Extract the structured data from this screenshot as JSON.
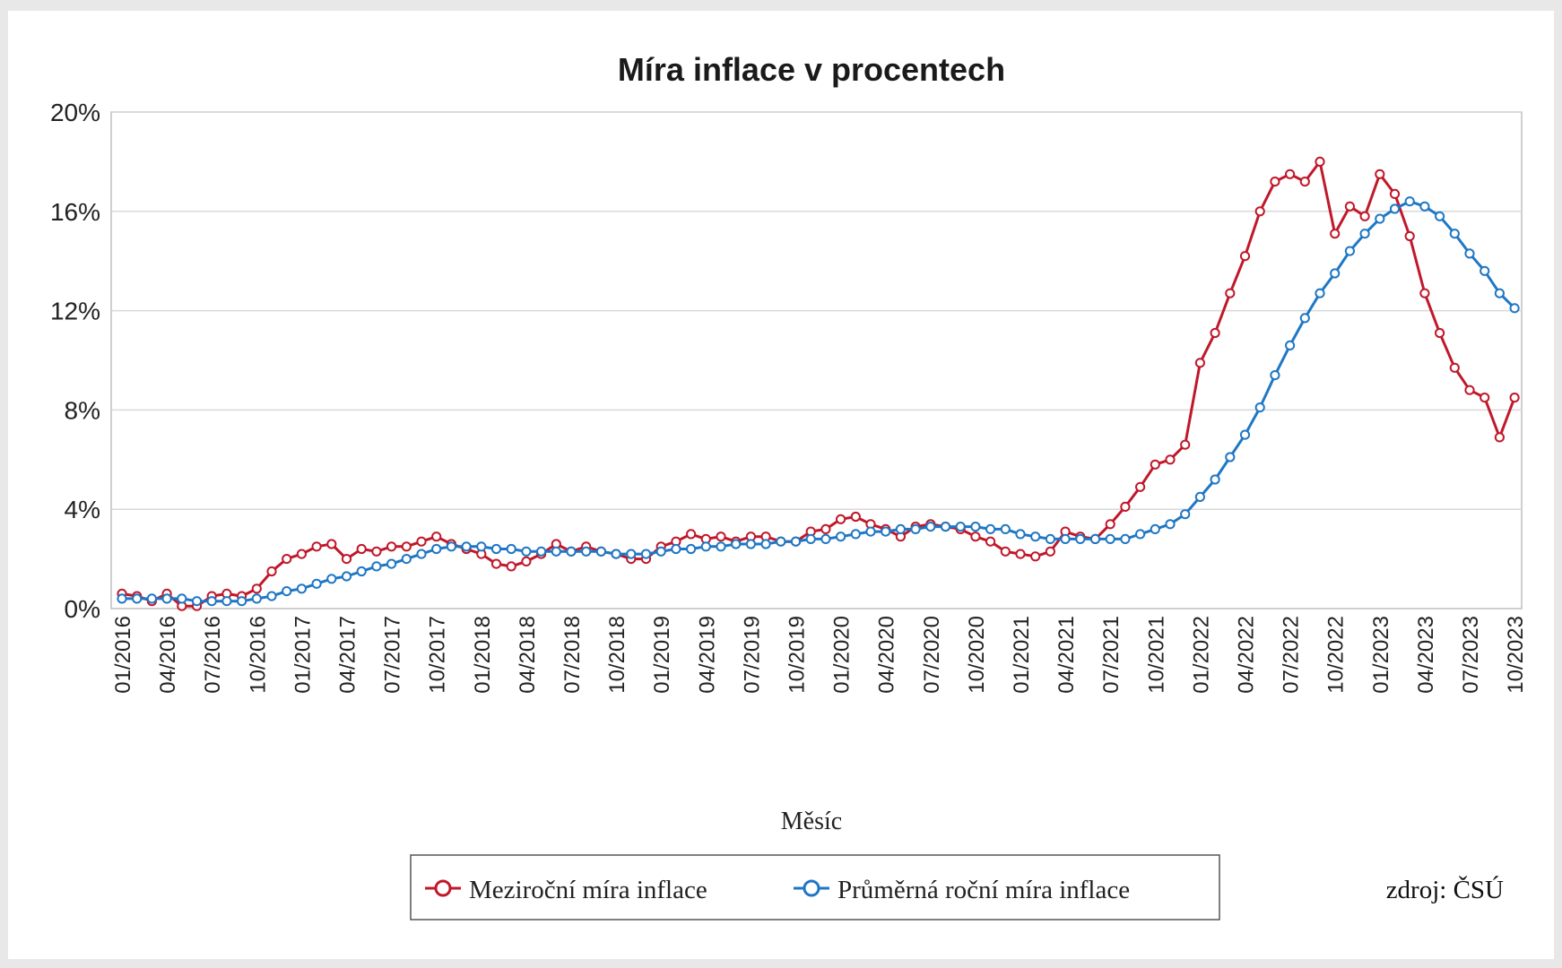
{
  "chart_data": {
    "type": "line",
    "title": "Míra inflace v procentech",
    "xlabel": "Měsíc",
    "ylabel": "",
    "ylim": [
      0,
      20
    ],
    "yticks": [
      "0%",
      "4%",
      "8%",
      "12%",
      "16%",
      "20%"
    ],
    "ytick_values": [
      0,
      4,
      8,
      12,
      16,
      20
    ],
    "x_tick_labels": [
      "01/2016",
      "04/2016",
      "07/2016",
      "10/2016",
      "01/2017",
      "04/2017",
      "07/2017",
      "10/2017",
      "01/2018",
      "04/2018",
      "07/2018",
      "10/2018",
      "01/2019",
      "04/2019",
      "07/2019",
      "10/2019",
      "01/2020",
      "04/2020",
      "07/2020",
      "10/2020",
      "01/2021",
      "04/2021",
      "07/2021",
      "10/2021",
      "01/2022",
      "04/2022",
      "07/2022",
      "10/2022",
      "01/2023",
      "04/2023",
      "07/2023",
      "10/2023"
    ],
    "x_count": 94,
    "grid": "horizontal",
    "legend_position": "bottom",
    "source": "zdroj: ČSÚ",
    "series": [
      {
        "name": "Meziroční míra inflace",
        "color": "#c0182a",
        "values": [
          0.6,
          0.5,
          0.3,
          0.6,
          0.1,
          0.1,
          0.5,
          0.6,
          0.5,
          0.8,
          1.5,
          2.0,
          2.2,
          2.5,
          2.6,
          2.0,
          2.4,
          2.3,
          2.5,
          2.5,
          2.7,
          2.9,
          2.6,
          2.4,
          2.2,
          1.8,
          1.7,
          1.9,
          2.2,
          2.6,
          2.3,
          2.5,
          2.3,
          2.2,
          2.0,
          2.0,
          2.5,
          2.7,
          3.0,
          2.8,
          2.9,
          2.7,
          2.9,
          2.9,
          2.7,
          2.7,
          3.1,
          3.2,
          3.6,
          3.7,
          3.4,
          3.2,
          2.9,
          3.3,
          3.4,
          3.3,
          3.2,
          2.9,
          2.7,
          2.3,
          2.2,
          2.1,
          2.3,
          3.1,
          2.9,
          2.8,
          3.4,
          4.1,
          4.9,
          5.8,
          6.0,
          6.6,
          9.9,
          11.1,
          12.7,
          14.2,
          16.0,
          17.2,
          17.5,
          17.2,
          18.0,
          15.1,
          16.2,
          15.8,
          17.5,
          16.7,
          15.0,
          12.7,
          11.1,
          9.7,
          8.8,
          8.5,
          6.9,
          8.5
        ]
      },
      {
        "name": "Průměrná roční míra inflace",
        "color": "#1f77c4",
        "values": [
          0.4,
          0.4,
          0.4,
          0.4,
          0.4,
          0.3,
          0.3,
          0.3,
          0.3,
          0.4,
          0.5,
          0.7,
          0.8,
          1.0,
          1.2,
          1.3,
          1.5,
          1.7,
          1.8,
          2.0,
          2.2,
          2.4,
          2.5,
          2.5,
          2.5,
          2.4,
          2.4,
          2.3,
          2.3,
          2.3,
          2.3,
          2.3,
          2.3,
          2.2,
          2.2,
          2.2,
          2.3,
          2.4,
          2.4,
          2.5,
          2.5,
          2.6,
          2.6,
          2.6,
          2.7,
          2.7,
          2.8,
          2.8,
          2.9,
          3.0,
          3.1,
          3.1,
          3.2,
          3.2,
          3.3,
          3.3,
          3.3,
          3.3,
          3.2,
          3.2,
          3.0,
          2.9,
          2.8,
          2.8,
          2.8,
          2.8,
          2.8,
          2.8,
          3.0,
          3.2,
          3.4,
          3.8,
          4.5,
          5.2,
          6.1,
          7.0,
          8.1,
          9.4,
          10.6,
          11.7,
          12.7,
          13.5,
          14.4,
          15.1,
          15.7,
          16.1,
          16.4,
          16.2,
          15.8,
          15.1,
          14.3,
          13.6,
          12.7,
          12.1
        ]
      }
    ]
  }
}
